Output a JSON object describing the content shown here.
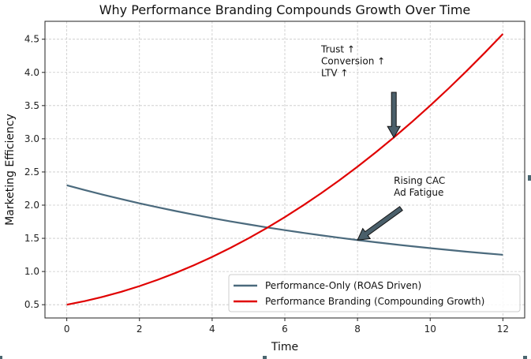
{
  "chart_data": {
    "type": "line",
    "title": "Why Performance Branding Compounds Growth Over Time",
    "xlabel": "Time",
    "ylabel": "Marketing Efficiency",
    "xlim": [
      -0.6,
      12.6
    ],
    "ylim": [
      0.3,
      4.77
    ],
    "xticks": [
      0,
      2,
      4,
      6,
      8,
      10,
      12
    ],
    "yticks": [
      0.5,
      1.0,
      1.5,
      2.0,
      2.5,
      3.0,
      3.5,
      4.0,
      4.5
    ],
    "grid": true,
    "legend_position": "lower-right",
    "x": [
      0,
      0.5,
      1,
      1.5,
      2,
      2.5,
      3,
      3.5,
      4,
      4.5,
      5,
      5.5,
      6,
      6.5,
      7,
      7.5,
      8,
      8.5,
      9,
      9.5,
      10,
      10.5,
      11,
      11.5,
      12
    ],
    "series": [
      {
        "name": "Performance-Only (ROAS Driven)",
        "color": "#4b6a7d",
        "values": [
          2.3,
          2.227,
          2.157,
          2.091,
          2.028,
          1.968,
          1.911,
          1.857,
          1.805,
          1.756,
          1.71,
          1.665,
          1.623,
          1.583,
          1.545,
          1.509,
          1.474,
          1.441,
          1.41,
          1.38,
          1.352,
          1.325,
          1.299,
          1.275,
          1.252
        ]
      },
      {
        "name": "Performance Branding (Compounding Growth)",
        "color": "#e00000",
        "values": [
          0.5,
          0.555,
          0.62,
          0.695,
          0.78,
          0.875,
          0.98,
          1.095,
          1.22,
          1.355,
          1.5,
          1.655,
          1.82,
          1.995,
          2.18,
          2.375,
          2.58,
          2.795,
          3.02,
          3.255,
          3.5,
          3.755,
          4.02,
          4.295,
          4.58
        ]
      }
    ],
    "annotations": [
      {
        "lines": [
          "Trust ↑",
          "Conversion ↑",
          "LTV ↑"
        ],
        "text_at": [
          7.0,
          4.3
        ],
        "arrow_from": [
          9.0,
          3.7
        ],
        "arrow_to": [
          9.0,
          3.02
        ]
      },
      {
        "lines": [
          "Rising CAC",
          "Ad Fatigue"
        ],
        "text_at": [
          9.0,
          2.32
        ],
        "arrow_from": [
          9.2,
          1.95
        ],
        "arrow_to": [
          8.0,
          1.474
        ]
      }
    ],
    "arrow_color": "#4a5f6a"
  }
}
